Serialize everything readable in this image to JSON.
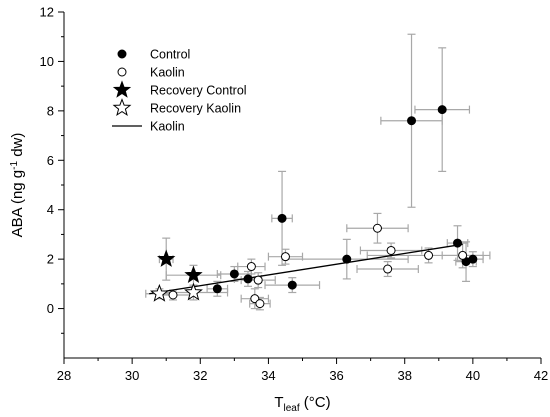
{
  "chart_data": {
    "type": "scatter",
    "title": "",
    "xlabel": {
      "main": "T",
      "sub": "leaf",
      "rest": " (°C)"
    },
    "ylabel": {
      "pre": "ABA (ng g",
      "sup": "-1",
      "post": " dw)"
    },
    "xlim": [
      28,
      42
    ],
    "ylim": [
      -2,
      12
    ],
    "xticks": [
      28,
      30,
      32,
      34,
      36,
      38,
      40,
      42
    ],
    "yticks": [
      0,
      2,
      4,
      6,
      8,
      10,
      12
    ],
    "grid": false,
    "legend_position": "top-left",
    "error_bar_color": "#a8a8a8",
    "series": [
      {
        "name": "Control",
        "marker": "filled-circle",
        "points": [
          {
            "x": 32.5,
            "y": 0.8,
            "xerr": 0.3,
            "yerr": 0.3
          },
          {
            "x": 33.0,
            "y": 1.4,
            "xerr": 0.5,
            "yerr": 0.3
          },
          {
            "x": 33.4,
            "y": 1.2,
            "xerr": 0.4,
            "yerr": 0.3
          },
          {
            "x": 34.4,
            "y": 3.65,
            "xerr": 0.3,
            "yerr": 1.9
          },
          {
            "x": 34.7,
            "y": 0.95,
            "xerr": 0.8,
            "yerr": 0.3
          },
          {
            "x": 36.3,
            "y": 2.0,
            "xerr": 1.8,
            "yerr": 0.8
          },
          {
            "x": 38.2,
            "y": 7.6,
            "xerr": 0.9,
            "yerr": 3.5
          },
          {
            "x": 39.1,
            "y": 8.05,
            "xerr": 0.8,
            "yerr": 2.5
          },
          {
            "x": 39.55,
            "y": 2.65,
            "xerr": 0.3,
            "yerr": 0.7
          },
          {
            "x": 39.8,
            "y": 1.9,
            "xerr": 0.3,
            "yerr": 0.8
          },
          {
            "x": 40.0,
            "y": 2.0,
            "xerr": 0.3,
            "yerr": 0.3
          }
        ]
      },
      {
        "name": "Kaolin",
        "marker": "open-circle",
        "points": [
          {
            "x": 31.2,
            "y": 0.55,
            "xerr": 0.5,
            "yerr": 0.2
          },
          {
            "x": 33.5,
            "y": 1.7,
            "xerr": 0.4,
            "yerr": 0.3
          },
          {
            "x": 33.6,
            "y": 0.4,
            "xerr": 0.4,
            "yerr": 0.4
          },
          {
            "x": 33.7,
            "y": 1.15,
            "xerr": 0.5,
            "yerr": 0.3
          },
          {
            "x": 33.75,
            "y": 0.2,
            "xerr": 0.3,
            "yerr": 0.25
          },
          {
            "x": 34.5,
            "y": 2.1,
            "xerr": 0.5,
            "yerr": 0.3
          },
          {
            "x": 37.2,
            "y": 3.25,
            "xerr": 0.9,
            "yerr": 0.6
          },
          {
            "x": 37.5,
            "y": 1.6,
            "xerr": 0.9,
            "yerr": 0.3
          },
          {
            "x": 37.6,
            "y": 2.35,
            "xerr": 0.9,
            "yerr": 0.3
          },
          {
            "x": 38.7,
            "y": 2.15,
            "xerr": 1.8,
            "yerr": 0.3
          },
          {
            "x": 39.7,
            "y": 2.15,
            "xerr": 0.6,
            "yerr": 0.5
          }
        ]
      },
      {
        "name": "Recovery Control",
        "marker": "filled-star",
        "points": [
          {
            "x": 31.0,
            "y": 2.0,
            "xerr": 0.2,
            "yerr": 0.85
          },
          {
            "x": 31.8,
            "y": 1.35,
            "xerr": 0.8,
            "yerr": 0.4
          }
        ]
      },
      {
        "name": "Recovery Kaolin",
        "marker": "open-star",
        "points": [
          {
            "x": 30.8,
            "y": 0.6,
            "xerr": 0.4,
            "yerr": 0.2
          },
          {
            "x": 31.8,
            "y": 0.65,
            "xerr": 1.0,
            "yerr": 0.3
          }
        ]
      }
    ],
    "fit_line": {
      "name": "Kaolin",
      "style": "solid",
      "from": {
        "x": 30.5,
        "y": 0.6
      },
      "to": {
        "x": 39.7,
        "y": 2.6
      }
    }
  }
}
